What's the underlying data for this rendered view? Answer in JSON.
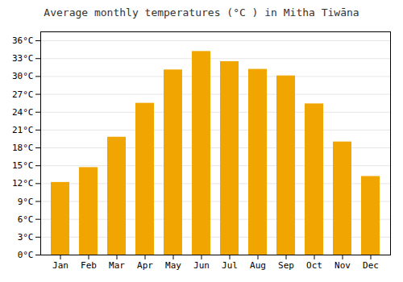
{
  "chart_data": {
    "type": "bar",
    "title": "Average monthly temperatures (°C ) in Mitha Tiwāna",
    "categories": [
      "Jan",
      "Feb",
      "Mar",
      "Apr",
      "May",
      "Jun",
      "Jul",
      "Aug",
      "Sep",
      "Oct",
      "Nov",
      "Dec"
    ],
    "values": [
      12.2,
      14.7,
      19.8,
      25.5,
      31.1,
      34.2,
      32.5,
      31.2,
      30.1,
      25.4,
      19.0,
      13.2
    ],
    "color": "#F0A500",
    "ylim": [
      0,
      37.5
    ],
    "yticks": [
      {
        "value": 0,
        "label": "0°C"
      },
      {
        "value": 3,
        "label": "3°C"
      },
      {
        "value": 6,
        "label": "6°C"
      },
      {
        "value": 9,
        "label": "9°C"
      },
      {
        "value": 12,
        "label": "12°C"
      },
      {
        "value": 15,
        "label": "15°C"
      },
      {
        "value": 18,
        "label": "18°C"
      },
      {
        "value": 21,
        "label": "21°C"
      },
      {
        "value": 24,
        "label": "24°C"
      },
      {
        "value": 27,
        "label": "27°C"
      },
      {
        "value": 30,
        "label": "30°C"
      },
      {
        "value": 33,
        "label": "33°C"
      },
      {
        "value": 36,
        "label": "36°C"
      }
    ],
    "grid": true
  }
}
